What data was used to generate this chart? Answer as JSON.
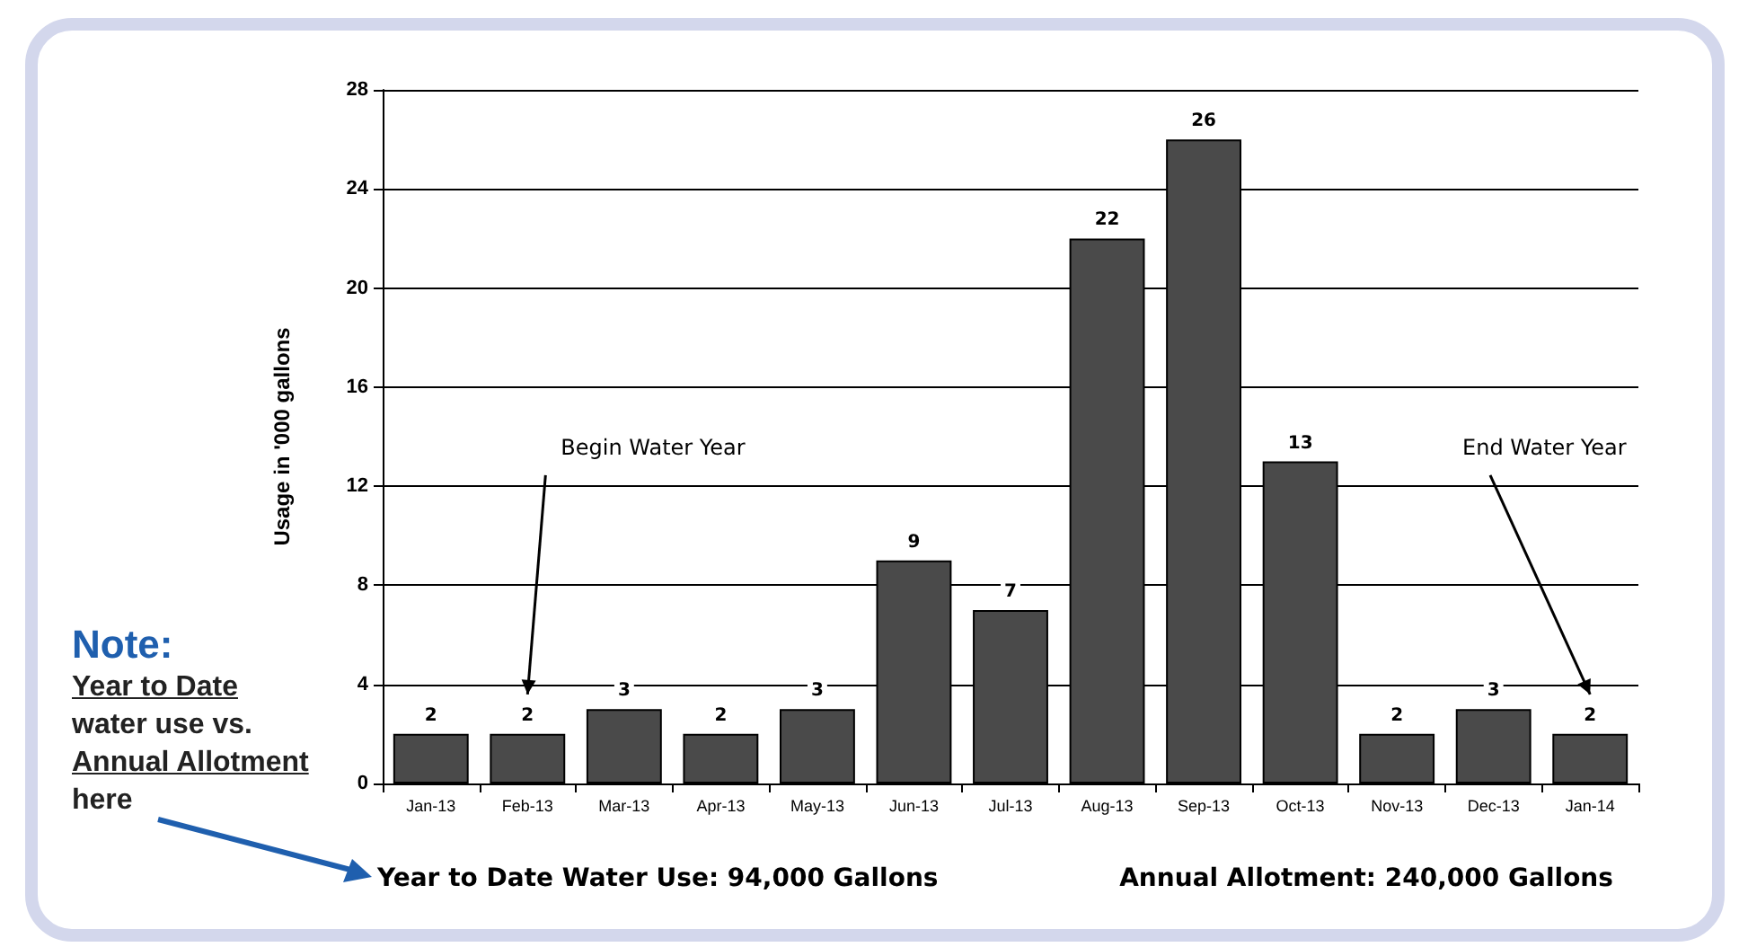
{
  "chart_data": {
    "type": "bar",
    "ylabel": "Usage in '000 gallons",
    "categories": [
      "Jan-13",
      "Feb-13",
      "Mar-13",
      "Apr-13",
      "May-13",
      "Jun-13",
      "Jul-13",
      "Aug-13",
      "Sep-13",
      "Oct-13",
      "Nov-13",
      "Dec-13",
      "Jan-14"
    ],
    "values": [
      2,
      2,
      3,
      2,
      3,
      9,
      7,
      22,
      26,
      13,
      2,
      3,
      2
    ],
    "color": "#4a4a4a",
    "data_labels": true,
    "ylim": [
      0,
      28
    ],
    "yticks": [
      0,
      4,
      8,
      12,
      16,
      20,
      24,
      28
    ],
    "grid": "y",
    "annotations": [
      "Begin Water Year",
      "End Water Year",
      "Note:",
      "Year to Date",
      "water use vs.",
      "Annual Allotment",
      "here",
      "Year to Date Water Use:  94,000 Gallons",
      "Annual Allotment:  240,000 Gallons"
    ]
  }
}
